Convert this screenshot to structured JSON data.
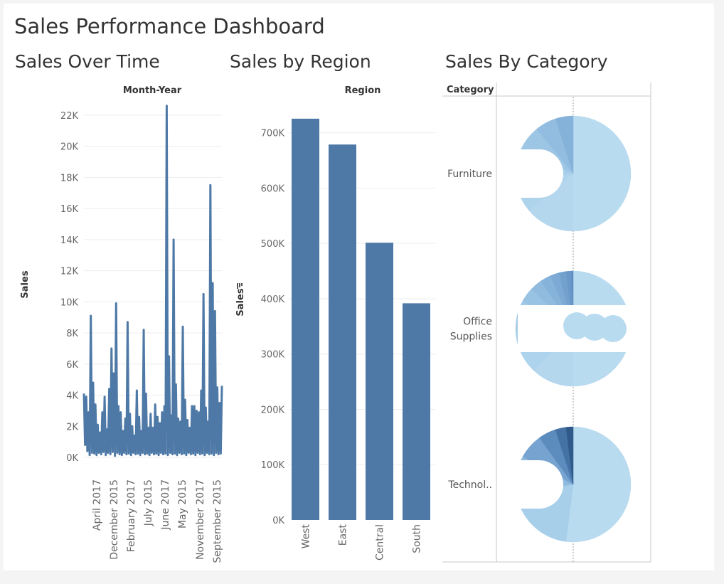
{
  "dashboard": {
    "title": "Sales Performance Dashboard"
  },
  "chart_data": [
    {
      "type": "line",
      "title": "Sales Over Time",
      "header": "Month-Year",
      "ylabel": "Sales",
      "ylim": [
        0,
        23000
      ],
      "yticks": [
        "0K",
        "2K",
        "4K",
        "6K",
        "8K",
        "10K",
        "12K",
        "14K",
        "16K",
        "18K",
        "20K",
        "22K"
      ],
      "xtick_labels": [
        "April 2017",
        "December 2015",
        "February 2017",
        "July 2015",
        "June 2017",
        "May 2015",
        "November 2017",
        "September 2015"
      ],
      "values": [
        4100,
        800,
        3900,
        400,
        2900,
        150,
        9100,
        300,
        4800,
        250,
        3400,
        150,
        2100,
        300,
        1600,
        200,
        2900,
        350,
        3900,
        150,
        1800,
        300,
        4400,
        200,
        7000,
        350,
        5400,
        100,
        9900,
        300,
        3300,
        200,
        2900,
        150,
        1700,
        300,
        2500,
        200,
        8700,
        250,
        2800,
        150,
        2000,
        300,
        1400,
        200,
        4300,
        250,
        2600,
        150,
        1700,
        300,
        8200,
        200,
        4100,
        250,
        1900,
        150,
        2800,
        300,
        1900,
        200,
        3400,
        250,
        2600,
        150,
        2200,
        300,
        2900,
        200,
        3300,
        250,
        22600,
        150,
        6500,
        300,
        2700,
        200,
        14000,
        250,
        4700,
        150,
        2500,
        300,
        2300,
        200,
        8400,
        250,
        3700,
        150,
        2400,
        300,
        1900,
        200,
        3300,
        250,
        3300,
        150,
        3000,
        300,
        2900,
        200,
        4300,
        250,
        10500,
        150,
        3200,
        300,
        2300,
        200,
        17500,
        250,
        11200,
        150,
        9400,
        300,
        4500,
        200,
        3500,
        250,
        4600
      ]
    },
    {
      "type": "bar",
      "title": "Sales by Region",
      "header": "Region",
      "ylabel": "Sales",
      "categories": [
        "West",
        "East",
        "Central",
        "South"
      ],
      "values": [
        725458,
        678781,
        501240,
        391722
      ],
      "ylim": [
        0,
        760000
      ],
      "yticks": [
        "0K",
        "100K",
        "200K",
        "300K",
        "400K",
        "500K",
        "600K",
        "700K"
      ],
      "color": "#4e79a7"
    },
    {
      "type": "pie",
      "title": "Sales By Category",
      "row_header": "Category",
      "categories": [
        {
          "label": "Furniture",
          "label_lines": [
            "Furniture"
          ],
          "slices": [
            {
              "value": 50,
              "color": "#b9dbf0"
            },
            {
              "value": 14,
              "color": "#b4d7ee"
            },
            {
              "value": 10,
              "color": "#aed3ec"
            },
            {
              "value": 8,
              "color": "#a6cde9"
            },
            {
              "value": 7,
              "color": "#9dc6e5"
            },
            {
              "value": 6,
              "color": "#92bde0"
            },
            {
              "value": 5,
              "color": "#85b2d9"
            }
          ]
        },
        {
          "label": "Office Supplies",
          "label_lines": [
            "Office",
            "Supplies"
          ],
          "slices": [
            {
              "value": 50,
              "color": "#b9dbf0"
            },
            {
              "value": 12,
              "color": "#b4d7ee"
            },
            {
              "value": 9,
              "color": "#aed3ec"
            },
            {
              "value": 7,
              "color": "#a8cfea"
            },
            {
              "value": 5,
              "color": "#a1c9e7"
            },
            {
              "value": 4,
              "color": "#99c3e3"
            },
            {
              "value": 3.5,
              "color": "#90bbdf"
            },
            {
              "value": 3,
              "color": "#86b3da"
            },
            {
              "value": 2.5,
              "color": "#7caad4"
            },
            {
              "value": 2,
              "color": "#73a1ce"
            },
            {
              "value": 1.5,
              "color": "#6a98c8"
            },
            {
              "value": 0.5,
              "color": "#5f8dc0"
            }
          ]
        },
        {
          "label": "Technology",
          "label_lines": [
            "Technol.."
          ],
          "slices": [
            {
              "value": 52,
              "color": "#b9dbf0"
            },
            {
              "value": 21,
              "color": "#a8cfea"
            },
            {
              "value": 10,
              "color": "#8fbade"
            },
            {
              "value": 7,
              "color": "#76a3cf"
            },
            {
              "value": 5,
              "color": "#5c8bbd"
            },
            {
              "value": 3,
              "color": "#4572a5"
            },
            {
              "value": 2,
              "color": "#2f5a8a"
            }
          ]
        }
      ]
    }
  ]
}
